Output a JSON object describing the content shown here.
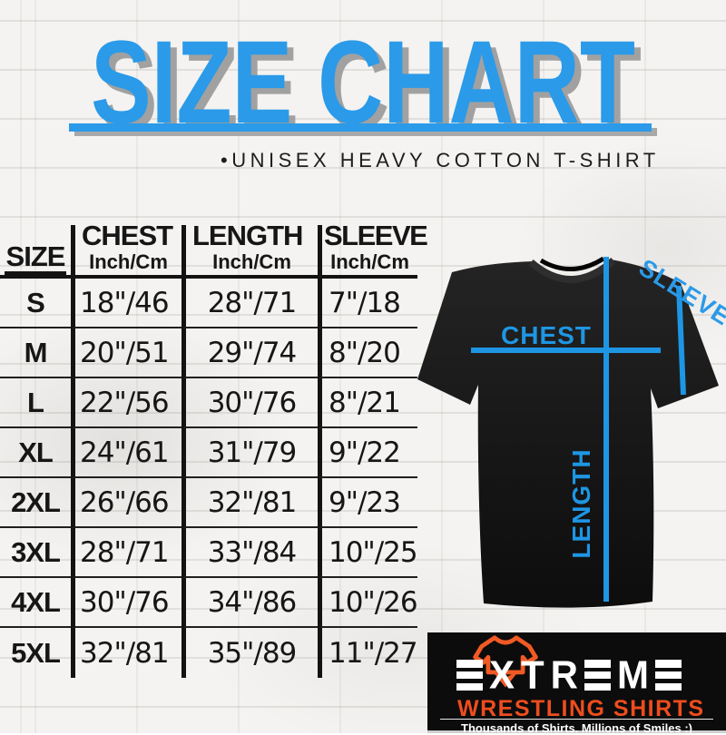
{
  "header": {
    "title": "SIZE CHART",
    "subtitle": "•UNISEX HEAVY COTTON T-SHIRT"
  },
  "chart_data": {
    "type": "table",
    "title": "SIZE CHART",
    "columns": [
      {
        "label": "SIZE",
        "unit": ""
      },
      {
        "label": "CHEST",
        "unit": "Inch/Cm"
      },
      {
        "label": "LENGTH",
        "unit": "Inch/Cm"
      },
      {
        "label": "SLEEVE",
        "unit": "Inch/Cm"
      }
    ],
    "rows": [
      {
        "size": "S",
        "chest": "18\"/46",
        "length": "28\"/71",
        "sleeve": "7\"/18"
      },
      {
        "size": "M",
        "chest": "20\"/51",
        "length": "29\"/74",
        "sleeve": "8\"/20"
      },
      {
        "size": "L",
        "chest": "22\"/56",
        "length": "30\"/76",
        "sleeve": "8\"/21"
      },
      {
        "size": "XL",
        "chest": "24\"/61",
        "length": "31\"/79",
        "sleeve": "9\"/22"
      },
      {
        "size": "2XL",
        "chest": "26\"/66",
        "length": "32\"/81",
        "sleeve": "9\"/23"
      },
      {
        "size": "3XL",
        "chest": "28\"/71",
        "length": "33\"/84",
        "sleeve": "10\"/25"
      },
      {
        "size": "4XL",
        "chest": "30\"/76",
        "length": "34\"/86",
        "sleeve": "10\"/26"
      },
      {
        "size": "5XL",
        "chest": "32\"/81",
        "length": "35\"/89",
        "sleeve": "11\"/27"
      }
    ]
  },
  "diagram": {
    "chest_label": "CHEST",
    "length_label": "LENGTH",
    "sleeve_label": "SLEEVE"
  },
  "logo": {
    "brand": "EXTREME",
    "brand_sub": "WRESTLING SHIRTS",
    "tagline": "Thousands of Shirts. Millions of Smiles :)"
  },
  "colors": {
    "accent_blue": "#2B9AE8",
    "line_blue": "#1E96E4",
    "logo_orange": "#F15A24",
    "logo_text_red": "#EE4D1E",
    "shirt_black": "#161616"
  }
}
